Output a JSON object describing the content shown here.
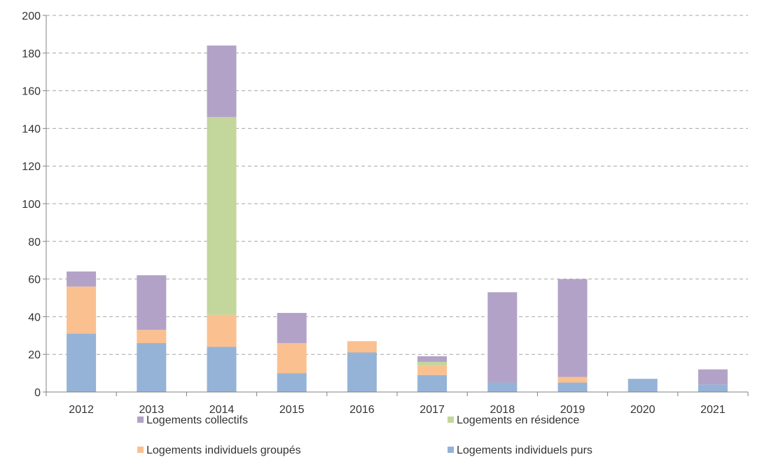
{
  "chart_data": {
    "type": "bar",
    "stacked": true,
    "title": "",
    "xlabel": "",
    "ylabel": "",
    "categories": [
      "2012",
      "2013",
      "2014",
      "2015",
      "2016",
      "2017",
      "2018",
      "2019",
      "2020",
      "2021"
    ],
    "ylim": [
      0,
      200
    ],
    "yticks": [
      0,
      20,
      40,
      60,
      80,
      100,
      120,
      140,
      160,
      180,
      200
    ],
    "ytick_labels": [
      "0",
      "20",
      "40",
      "60",
      "80",
      "100",
      "120",
      "140",
      "160",
      "180",
      "200"
    ],
    "grid": "horizontal-dashed",
    "legend_position": "bottom",
    "series": [
      {
        "name": "Logements individuels purs",
        "color": "#95b3d7",
        "values": [
          31,
          26,
          24,
          10,
          21,
          9,
          5,
          5,
          7,
          4
        ]
      },
      {
        "name": "Logements individuels groupés",
        "color": "#fac090",
        "values": [
          25,
          7,
          17,
          16,
          6,
          5,
          0,
          3,
          0,
          0
        ]
      },
      {
        "name": "Logements en résidence",
        "color": "#c3d69b",
        "values": [
          0,
          0,
          105,
          0,
          0,
          2,
          0,
          0,
          0,
          0
        ]
      },
      {
        "name": "Logements collectifs",
        "color": "#b3a2c7",
        "values": [
          8,
          29,
          38,
          16,
          0,
          3,
          48,
          52,
          0,
          8
        ]
      }
    ],
    "legend_entries": [
      "Logements collectifs",
      "Logements en résidence",
      "Logements individuels groupés",
      "Logements individuels purs"
    ]
  }
}
